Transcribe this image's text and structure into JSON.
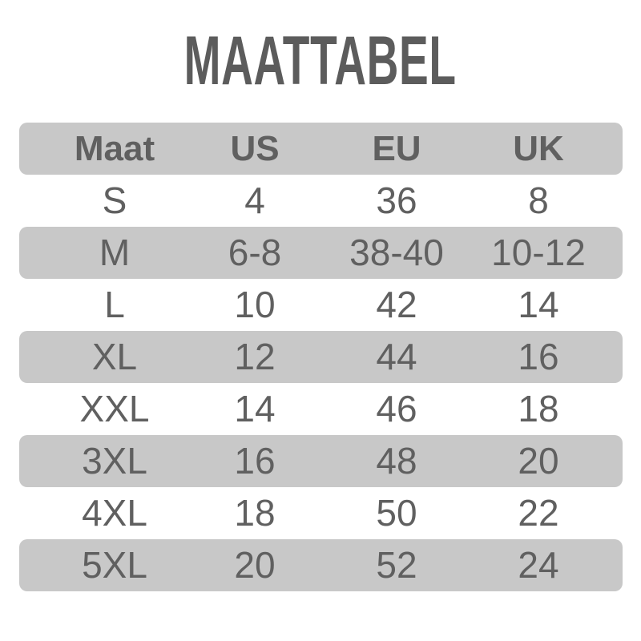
{
  "title": "MAATTABEL",
  "colors": {
    "row_shade": "#c8c8c8",
    "text": "#606060"
  },
  "header": [
    "Maat",
    "US",
    "EU",
    "UK"
  ],
  "rows": [
    [
      "S",
      "4",
      "36",
      "8"
    ],
    [
      "M",
      "6-8",
      "38-40",
      "10-12"
    ],
    [
      "L",
      "10",
      "42",
      "14"
    ],
    [
      "XL",
      "12",
      "44",
      "16"
    ],
    [
      "XXL",
      "14",
      "46",
      "18"
    ],
    [
      "3XL",
      "16",
      "48",
      "20"
    ],
    [
      "4XL",
      "18",
      "50",
      "22"
    ],
    [
      "5XL",
      "20",
      "52",
      "24"
    ]
  ]
}
